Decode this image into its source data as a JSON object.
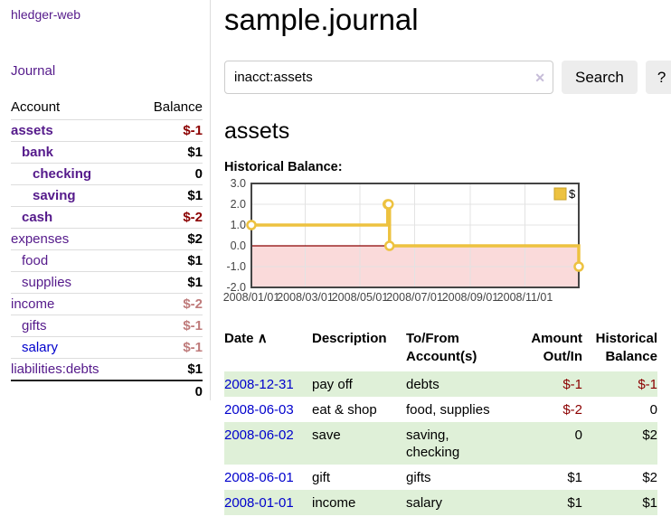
{
  "colors": {
    "link_purple": "#551a8b",
    "link_blue": "#0000cc",
    "negative_strong": "#8b0000",
    "negative_light": "#bf7b7b",
    "row_highlight_green": "#dff0d8",
    "series_yellow": "#edc240",
    "negative_region_pink": "#fadada",
    "zero_line_red": "#8b0000",
    "chart_border_gray": "#444444",
    "button_gray": "#ededed"
  },
  "sidebar": {
    "brand": "hledger-web",
    "journal_label": "Journal",
    "accounts_table": {
      "headers": {
        "account": "Account",
        "balance": "Balance"
      },
      "rows": [
        {
          "name": "assets",
          "indent": 0,
          "bold": true,
          "link_color": "purple",
          "balance": "$-1",
          "tone": "negative"
        },
        {
          "name": "bank",
          "indent": 1,
          "bold": true,
          "link_color": "purple",
          "balance": "$1",
          "tone": "normal"
        },
        {
          "name": "checking",
          "indent": 2,
          "bold": true,
          "link_color": "purple",
          "balance": "0",
          "tone": "normal"
        },
        {
          "name": "saving",
          "indent": 2,
          "bold": true,
          "link_color": "purple",
          "balance": "$1",
          "tone": "normal"
        },
        {
          "name": "cash",
          "indent": 1,
          "bold": true,
          "link_color": "purple",
          "balance": "$-2",
          "tone": "negative"
        },
        {
          "name": "expenses",
          "indent": 0,
          "bold": false,
          "link_color": "purple",
          "balance": "$2",
          "tone": "normal"
        },
        {
          "name": "food",
          "indent": 1,
          "bold": false,
          "link_color": "purple",
          "balance": "$1",
          "tone": "normal"
        },
        {
          "name": "supplies",
          "indent": 1,
          "bold": false,
          "link_color": "purple",
          "balance": "$1",
          "tone": "normal"
        },
        {
          "name": "income",
          "indent": 0,
          "bold": false,
          "link_color": "purple",
          "balance": "$-2",
          "tone": "negative-light"
        },
        {
          "name": "gifts",
          "indent": 1,
          "bold": false,
          "link_color": "purple",
          "balance": "$-1",
          "tone": "negative-light"
        },
        {
          "name": "salary",
          "indent": 1,
          "bold": false,
          "link_color": "blue",
          "balance": "$-1",
          "tone": "negative-light"
        },
        {
          "name": "liabilities:debts",
          "indent": 0,
          "bold": false,
          "link_color": "purple",
          "balance": "$1",
          "tone": "normal"
        }
      ],
      "total": "0"
    }
  },
  "main": {
    "title": "sample.journal",
    "search": {
      "value": "inacct:assets",
      "clear_icon": "✕",
      "button_label": "Search",
      "help_label": "?"
    },
    "account_heading": "assets",
    "chart_label": "Historical Balance:"
  },
  "chart_data": {
    "type": "line",
    "mode": "steps",
    "title": "Historical Balance",
    "xlim": [
      "2008-01-01",
      "2008-12-31"
    ],
    "ylim": [
      -2,
      3
    ],
    "x_ticks": [
      "2008/01/01",
      "2008/03/01",
      "2008/05/01",
      "2008/07/01",
      "2008/09/01",
      "2008/11/01"
    ],
    "y_ticks": [
      "3.0",
      "2.0",
      "1.0",
      "0.0",
      "-1.0",
      "-2.0"
    ],
    "grid": true,
    "legend_position": "top-right",
    "series": [
      {
        "name": "$",
        "color": "#edc240",
        "points": [
          {
            "x": "2008-01-01",
            "y": 1
          },
          {
            "x": "2008-06-01",
            "y": 2
          },
          {
            "x": "2008-06-02",
            "y": 2
          },
          {
            "x": "2008-06-03",
            "y": 0
          },
          {
            "x": "2008-12-31",
            "y": -1
          }
        ]
      }
    ],
    "negative_region_fill": "#fadada",
    "zero_line_color": "#8b0000"
  },
  "transactions_table": {
    "headers": {
      "date": "Date",
      "sort_icon": "∧",
      "description": "Description",
      "tofrom": "To/From Account(s)",
      "amount": "Amount Out/In",
      "balance": "Historical Balance"
    },
    "rows": [
      {
        "date": "2008-12-31",
        "description": "pay off",
        "accounts": [
          "debts"
        ],
        "amount": "$-1",
        "amount_tone": "negative",
        "balance": "$-1",
        "balance_tone": "negative",
        "highlighted": true
      },
      {
        "date": "2008-06-03",
        "description": "eat & shop",
        "accounts": [
          "food, supplies"
        ],
        "amount": "$-2",
        "amount_tone": "negative",
        "balance": "0",
        "balance_tone": "normal",
        "highlighted": false
      },
      {
        "date": "2008-06-02",
        "description": "save",
        "accounts": [
          "saving,",
          "checking"
        ],
        "amount": "0",
        "amount_tone": "normal",
        "balance": "$2",
        "balance_tone": "normal",
        "highlighted": true
      },
      {
        "date": "2008-06-01",
        "description": "gift",
        "accounts": [
          "gifts"
        ],
        "amount": "$1",
        "amount_tone": "normal",
        "balance": "$2",
        "balance_tone": "normal",
        "highlighted": false
      },
      {
        "date": "2008-01-01",
        "description": "income",
        "accounts": [
          "salary"
        ],
        "amount": "$1",
        "amount_tone": "normal",
        "balance": "$1",
        "balance_tone": "normal",
        "highlighted": true
      }
    ]
  }
}
